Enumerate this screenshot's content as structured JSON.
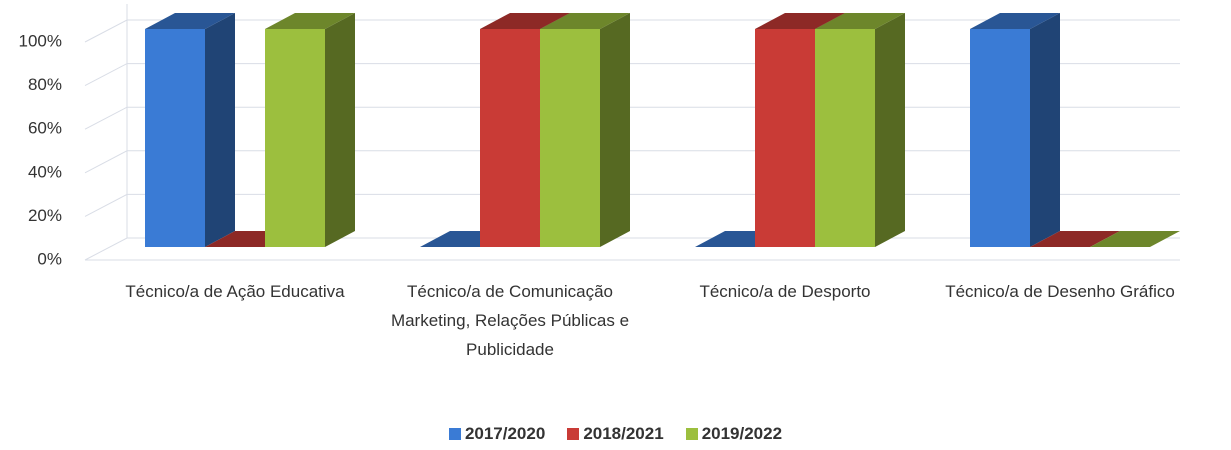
{
  "chart_data": {
    "type": "bar3d",
    "categories": [
      "Técnico/a de Ação Educativa",
      "Técnico/a de Comunicação  Marketing, Relações Públicas e Publicidade",
      "Técnico/a de Desporto",
      "Técnico/a de Desenho Gráfico"
    ],
    "series": [
      {
        "name": "2017/2020",
        "color": "#3a7bd5",
        "values": [
          100,
          0,
          0,
          100
        ]
      },
      {
        "name": "2018/2021",
        "color": "#c93b36",
        "values": [
          0,
          100,
          100,
          0
        ]
      },
      {
        "name": "2019/2022",
        "color": "#9cbf3e",
        "values": [
          100,
          100,
          100,
          0
        ]
      }
    ],
    "ylim": [
      0,
      100
    ],
    "yticks": [
      {
        "value": 0,
        "label": "0%"
      },
      {
        "value": 20,
        "label": "20%"
      },
      {
        "value": 40,
        "label": "40%"
      },
      {
        "value": 60,
        "label": "60%"
      },
      {
        "value": 80,
        "label": "80%"
      },
      {
        "value": 100,
        "label": "100%"
      }
    ],
    "grid": true,
    "legend": "bottom"
  }
}
